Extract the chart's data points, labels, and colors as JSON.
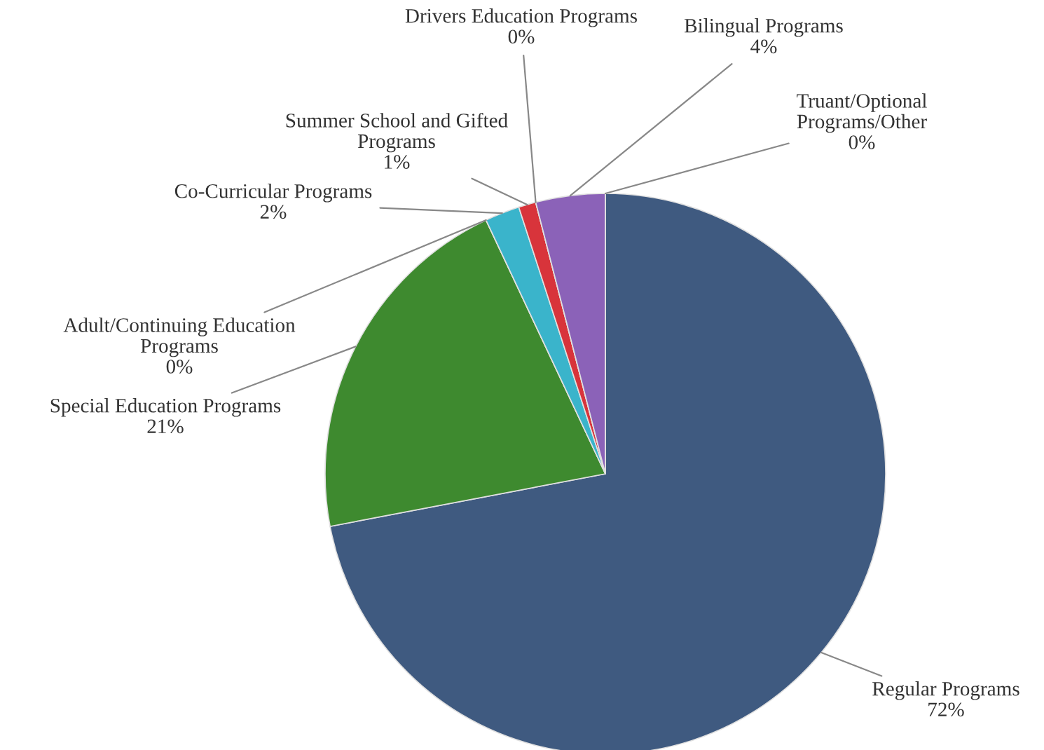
{
  "chart_data": {
    "type": "pie",
    "categories": [
      "Regular Programs",
      "Special Education Programs",
      "Adult/Continuing Education\nPrograms",
      "Co-Curricular Programs",
      "Summer School and Gifted\nPrograms",
      "Drivers Education Programs",
      "Bilingual Programs",
      "Truant/Optional\nPrograms/Other"
    ],
    "values": [
      72,
      21,
      0,
      2,
      1,
      0,
      4,
      0
    ],
    "value_labels": [
      "72%",
      "21%",
      "0%",
      "2%",
      "1%",
      "0%",
      "4%",
      "0%"
    ],
    "colors": [
      "#3f5a80",
      "#3e8a2f",
      "#9aa0a6",
      "#3ab4cb",
      "#d8343b",
      "#b0b0b0",
      "#8b62b8",
      "#c0c0c0"
    ]
  }
}
